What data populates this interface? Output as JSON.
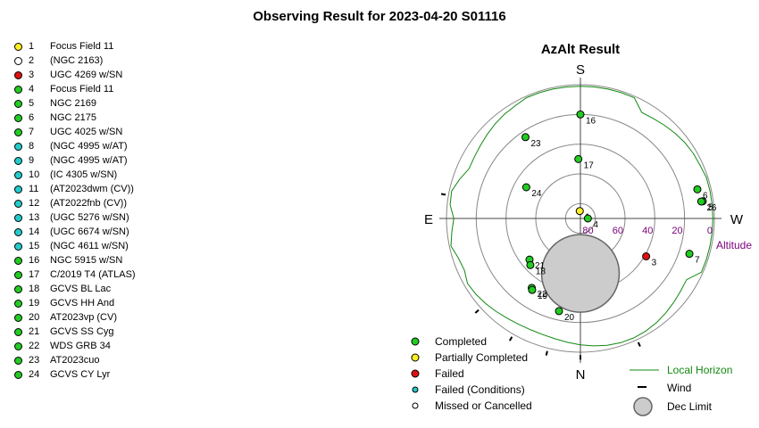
{
  "title": "Observing Result for 2023-04-20 S01116",
  "colors": {
    "completed": "#22cc22",
    "partially_completed": "#ffee22",
    "failed": "#dd1111",
    "failed_conditions": "#22cccc",
    "missed": "#ffffff",
    "horizon": "#118811",
    "altitude_label": "#7a007a",
    "dec_limit": "#cccccc"
  },
  "targets": [
    {
      "num": "1",
      "name": "Focus Field 11",
      "status": "partially_completed"
    },
    {
      "num": "2",
      "name": "(NGC 2163)",
      "status": "missed"
    },
    {
      "num": "3",
      "name": "UGC 4269 w/SN",
      "status": "failed"
    },
    {
      "num": "4",
      "name": "Focus Field 11",
      "status": "completed"
    },
    {
      "num": "5",
      "name": "NGC 2169",
      "status": "completed"
    },
    {
      "num": "6",
      "name": "NGC 2175",
      "status": "completed"
    },
    {
      "num": "7",
      "name": "UGC 4025 w/SN",
      "status": "completed"
    },
    {
      "num": "8",
      "name": "(NGC 4995 w/AT)",
      "status": "failed_conditions"
    },
    {
      "num": "9",
      "name": "(NGC 4995 w/AT)",
      "status": "failed_conditions"
    },
    {
      "num": "10",
      "name": "(IC 4305 w/SN)",
      "status": "failed_conditions"
    },
    {
      "num": "11",
      "name": "(AT2023dwm (CV))",
      "status": "failed_conditions"
    },
    {
      "num": "12",
      "name": "(AT2022fnb (CV))",
      "status": "failed_conditions"
    },
    {
      "num": "13",
      "name": "(UGC 5276 w/SN)",
      "status": "failed_conditions"
    },
    {
      "num": "14",
      "name": "(UGC 6674 w/SN)",
      "status": "failed_conditions"
    },
    {
      "num": "15",
      "name": "(NGC 4611 w/SN)",
      "status": "failed_conditions"
    },
    {
      "num": "16",
      "name": "NGC 5915 w/SN",
      "status": "completed"
    },
    {
      "num": "17",
      "name": "C/2019 T4 (ATLAS)",
      "status": "completed"
    },
    {
      "num": "18",
      "name": "GCVS BL Lac",
      "status": "completed"
    },
    {
      "num": "19",
      "name": "GCVS HH And",
      "status": "completed"
    },
    {
      "num": "20",
      "name": "AT2023vp (CV)",
      "status": "completed"
    },
    {
      "num": "21",
      "name": "GCVS SS Cyg",
      "status": "completed"
    },
    {
      "num": "22",
      "name": "WDS GRB 34",
      "status": "completed"
    },
    {
      "num": "23",
      "name": "AT2023cuo",
      "status": "completed"
    },
    {
      "num": "24",
      "name": "GCVS CY Lyr",
      "status": "completed"
    }
  ],
  "chart_data": {
    "type": "scatter",
    "projection": "polar-azalt",
    "title": "AzAlt Result",
    "radial_axis": {
      "label": "Altitude",
      "ticks": [
        80,
        60,
        40,
        20,
        0
      ],
      "range": [
        90,
        0
      ]
    },
    "directions": {
      "north": "N",
      "south": "S",
      "east": "E",
      "west": "W"
    },
    "points": [
      {
        "label": "1",
        "az": 175,
        "alt": 85,
        "status": "partially_completed"
      },
      {
        "label": "4",
        "az": 270,
        "alt": 85,
        "status": "completed"
      },
      {
        "label": "3",
        "az": 300,
        "alt": 39,
        "status": "failed"
      },
      {
        "label": "7",
        "az": 288,
        "alt": 13,
        "status": "completed"
      },
      {
        "label": "5",
        "az": 262,
        "alt": 7,
        "status": "completed"
      },
      {
        "label": "6",
        "az": 256,
        "alt": 9,
        "status": "completed"
      },
      {
        "label": "26",
        "az": 262,
        "alt": 8,
        "status": "completed"
      },
      {
        "label": "16",
        "az": 180,
        "alt": 20,
        "status": "completed"
      },
      {
        "label": "17",
        "az": 178,
        "alt": 50,
        "status": "completed"
      },
      {
        "label": "23",
        "az": 146,
        "alt": 24,
        "status": "completed"
      },
      {
        "label": "24",
        "az": 120,
        "alt": 48,
        "status": "completed"
      },
      {
        "label": "21",
        "az": 51,
        "alt": 46,
        "status": "completed"
      },
      {
        "label": "18",
        "az": 47,
        "alt": 44,
        "status": "completed"
      },
      {
        "label": "22",
        "az": 35,
        "alt": 33,
        "status": "completed"
      },
      {
        "label": "19",
        "az": 34,
        "alt": 32,
        "status": "completed"
      },
      {
        "label": "20",
        "az": 13,
        "alt": 26,
        "status": "completed"
      }
    ],
    "dec_limit": {
      "az": 0,
      "alt": 53,
      "radius_deg": 18
    },
    "horizon_name": "Local Horizon",
    "legend": [
      {
        "status": "completed",
        "label": "Completed"
      },
      {
        "status": "partially_completed",
        "label": "Partially Completed"
      },
      {
        "status": "failed",
        "label": "Failed"
      },
      {
        "status": "failed_conditions",
        "label": "Failed (Conditions)"
      },
      {
        "status": "missed",
        "label": "Missed or Cancelled"
      }
    ],
    "legend_right": {
      "horizon": "Local Horizon",
      "wind": "Wind",
      "dec_limit": "Dec Limit"
    }
  }
}
